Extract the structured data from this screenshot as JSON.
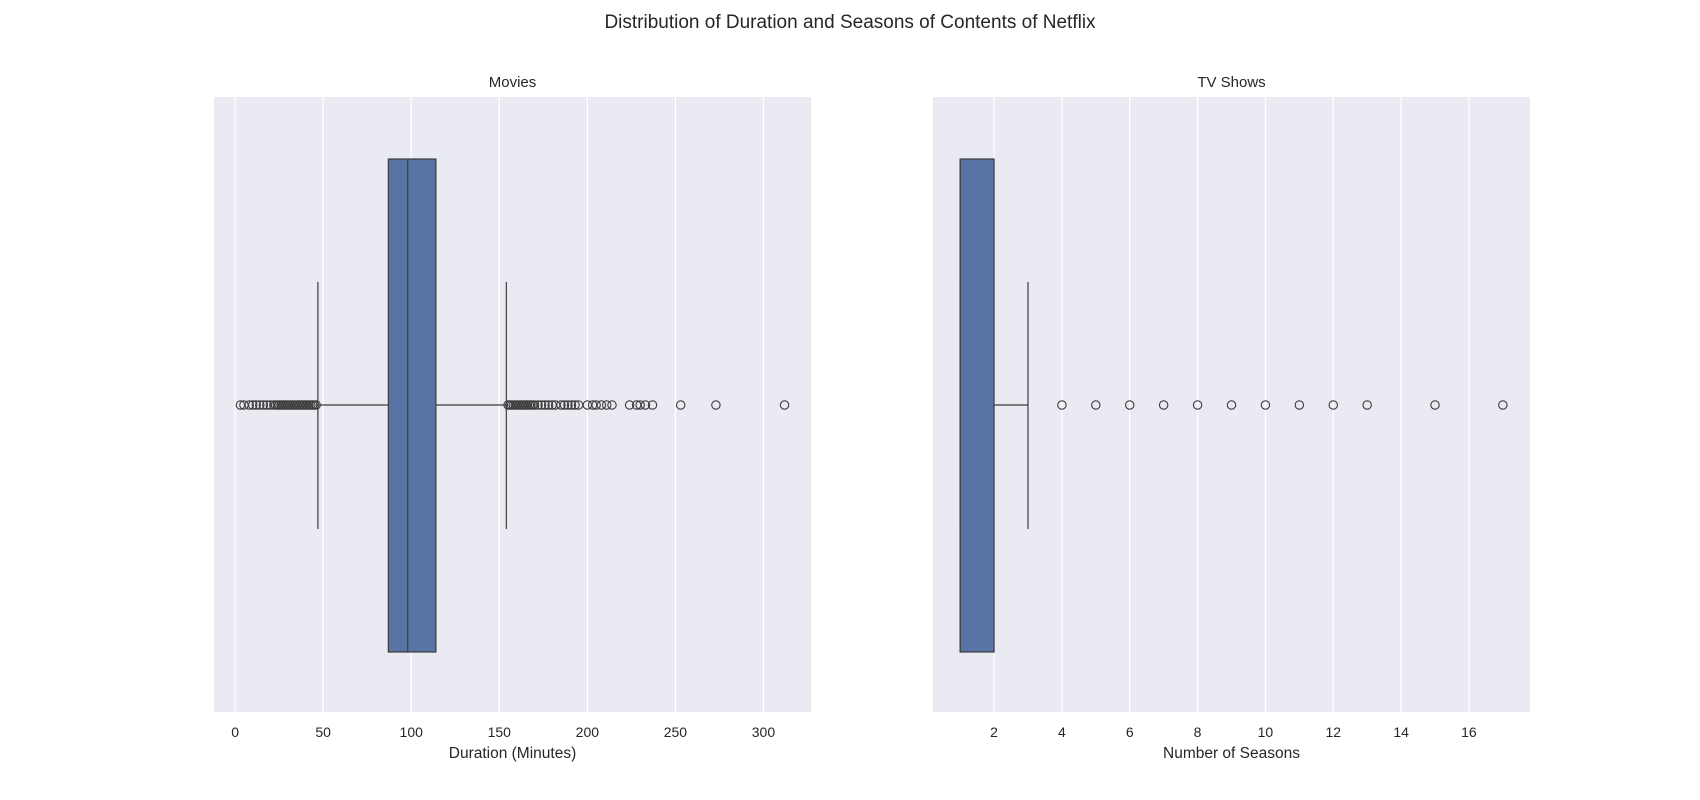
{
  "figure": {
    "title": "Distribution of Duration and Seasons of Contents of Netflix"
  },
  "colors": {
    "panel_background": "#eaeaf2",
    "gridline": "#ffffff",
    "box_fill": "#5874a4",
    "line": "#3c3c3c",
    "text": "#262626"
  },
  "chart_data": [
    {
      "type": "boxplot",
      "title": "Movies",
      "xlabel": "Duration (Minutes)",
      "ylabel": "",
      "orientation": "horizontal",
      "xlim": [
        -12,
        327
      ],
      "xticks": [
        0,
        50,
        100,
        150,
        200,
        250,
        300
      ],
      "grid": true,
      "box": {
        "whisker_low": 47,
        "q1": 87,
        "median": 98,
        "q3": 114,
        "whisker_high": 154
      },
      "outliers": [
        3,
        5,
        8,
        10,
        12,
        14,
        16,
        18,
        20,
        22,
        23,
        24,
        25,
        26,
        27,
        28,
        29,
        30,
        31,
        32,
        33,
        34,
        35,
        36,
        37,
        38,
        39,
        40,
        41,
        42,
        43,
        44,
        45,
        46,
        155,
        156,
        157,
        158,
        159,
        160,
        161,
        162,
        163,
        164,
        165,
        166,
        167,
        168,
        169,
        170,
        172,
        174,
        176,
        178,
        180,
        182,
        185,
        187,
        189,
        191,
        193,
        195,
        200,
        203,
        205,
        208,
        211,
        214,
        224,
        228,
        230,
        233,
        237,
        253,
        273,
        312
      ]
    },
    {
      "type": "boxplot",
      "title": "TV Shows",
      "xlabel": "Number of Seasons",
      "ylabel": "",
      "orientation": "horizontal",
      "xlim": [
        0.2,
        17.8
      ],
      "xticks": [
        2,
        4,
        6,
        8,
        10,
        12,
        14,
        16
      ],
      "grid": true,
      "box": {
        "whisker_low": 1,
        "q1": 1,
        "median": 1,
        "q3": 2,
        "whisker_high": 3
      },
      "outliers": [
        4,
        5,
        6,
        7,
        8,
        9,
        10,
        11,
        12,
        13,
        15,
        17
      ]
    }
  ]
}
